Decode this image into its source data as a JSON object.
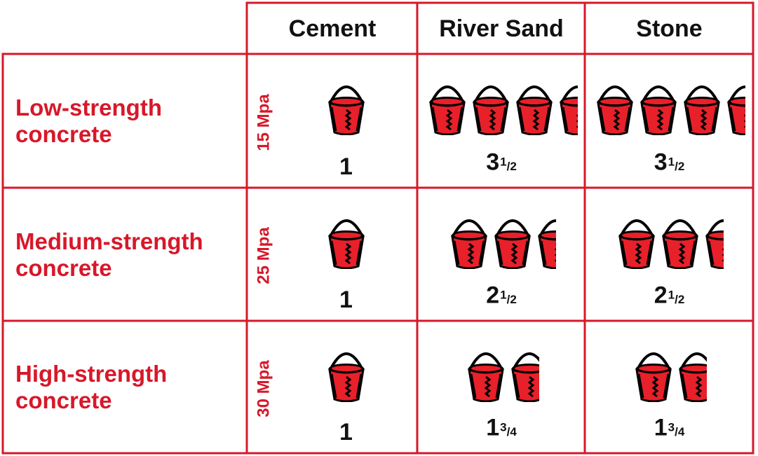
{
  "colors": {
    "accent": "#d7182a",
    "text": "#111111",
    "bucket": "#e8202a"
  },
  "columns": [
    {
      "label": "Cement"
    },
    {
      "label": "River Sand"
    },
    {
      "label": "Stone"
    }
  ],
  "rows": [
    {
      "label_line1": "Low-strength",
      "label_line2": "concrete",
      "strength": "15 Mpa",
      "cells": [
        {
          "whole": "1",
          "num": "",
          "den": "",
          "buckets": 1
        },
        {
          "whole": "3",
          "num": "1",
          "den": "2",
          "buckets": 3.5
        },
        {
          "whole": "3",
          "num": "1",
          "den": "2",
          "buckets": 3.5
        }
      ]
    },
    {
      "label_line1": "Medium-strength",
      "label_line2": "concrete",
      "strength": "25 Mpa",
      "cells": [
        {
          "whole": "1",
          "num": "",
          "den": "",
          "buckets": 1
        },
        {
          "whole": "2",
          "num": "1",
          "den": "2",
          "buckets": 2.5
        },
        {
          "whole": "2",
          "num": "1",
          "den": "2",
          "buckets": 2.5
        }
      ]
    },
    {
      "label_line1": "High-strength",
      "label_line2": "concrete",
      "strength": "30 Mpa",
      "cells": [
        {
          "whole": "1",
          "num": "",
          "den": "",
          "buckets": 1
        },
        {
          "whole": "1",
          "num": "3",
          "den": "4",
          "buckets": 1.75
        },
        {
          "whole": "1",
          "num": "3",
          "den": "4",
          "buckets": 1.75
        }
      ]
    }
  ]
}
